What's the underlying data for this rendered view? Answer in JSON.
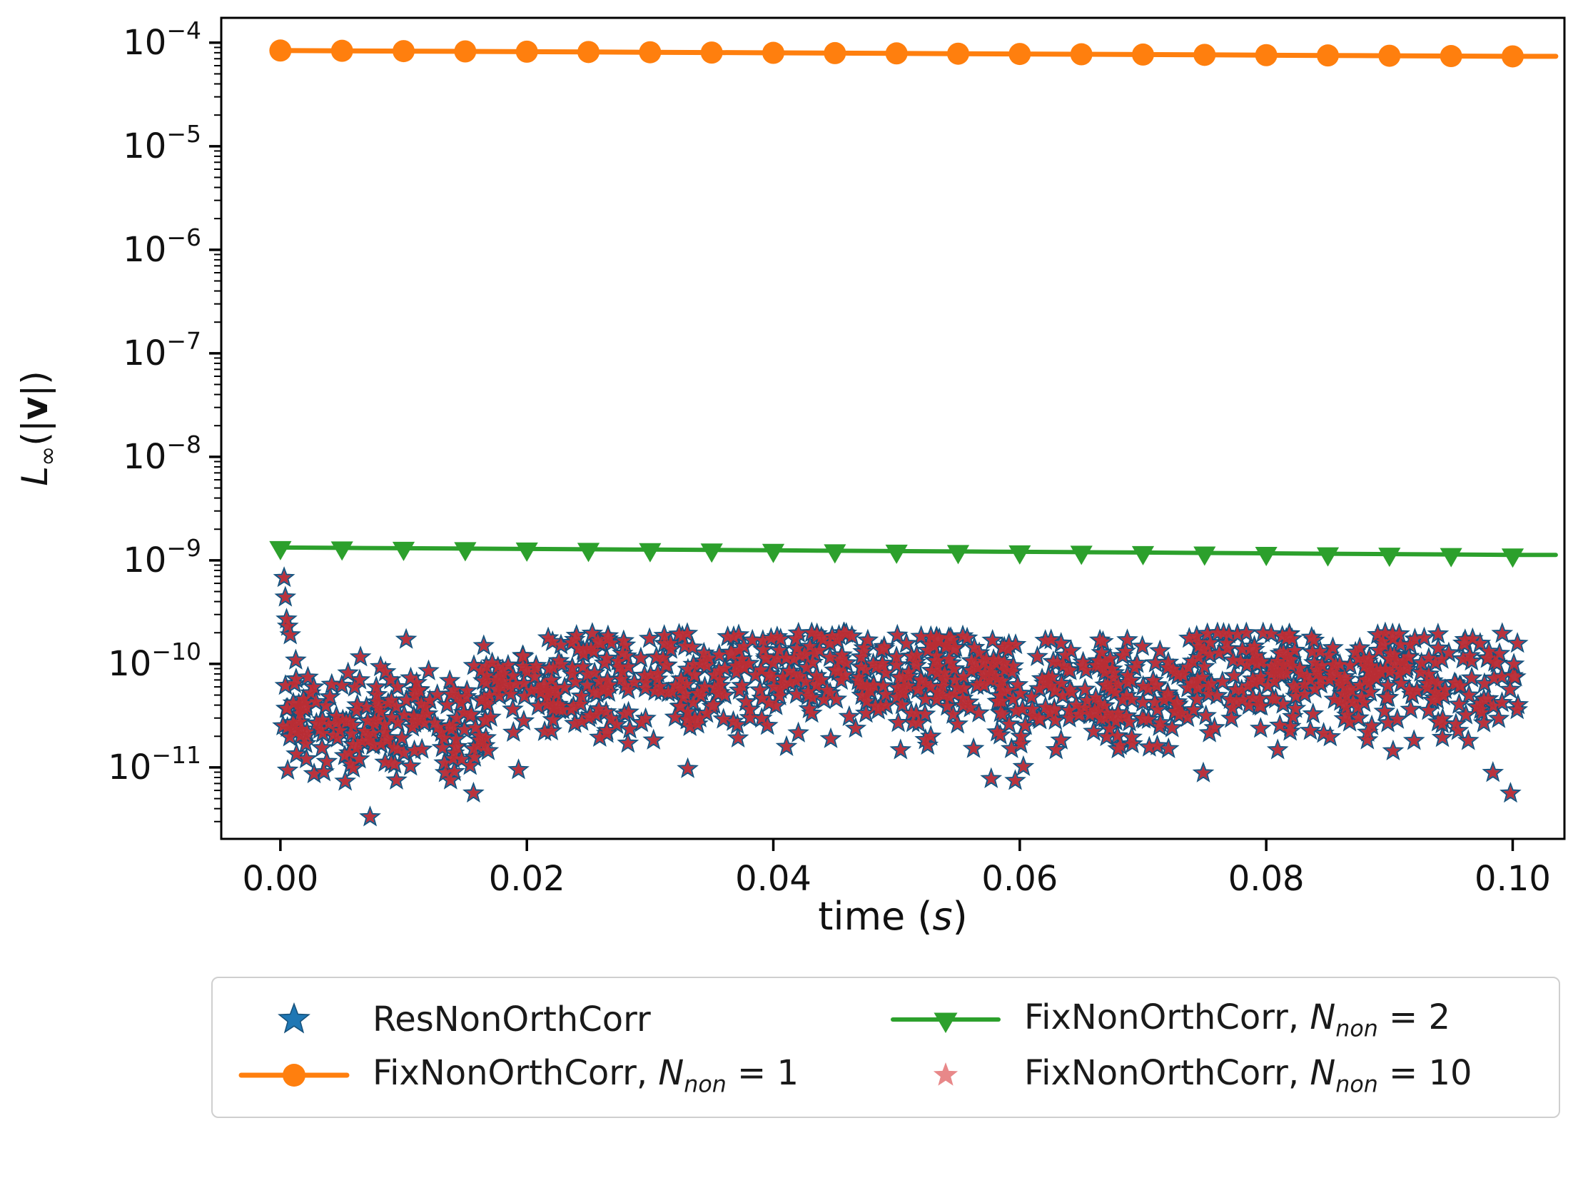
{
  "figure": {
    "background": "#ffffff",
    "text_color": "#111111",
    "frame_color": "#000000"
  },
  "chart_data": {
    "type": "line+scatter",
    "title": "",
    "xlabel_parts": {
      "prefix": "time (",
      "var": "s",
      "suffix": ")"
    },
    "ylabel_parts": {
      "var": "L",
      "sub": "∞",
      "open": "(|",
      "bold": "v",
      "close": "|)"
    },
    "x_axis": {
      "tick_values": [
        0.0,
        0.02,
        0.04,
        0.06,
        0.08,
        0.1
      ],
      "tick_labels": [
        "0.00",
        "0.02",
        "0.04",
        "0.06",
        "0.08",
        "0.10"
      ]
    },
    "y_axis": {
      "scale": "log",
      "tick_base": "10",
      "tick_exponents": [
        -4,
        -5,
        -6,
        -7,
        -8,
        -9,
        -10,
        -11
      ]
    },
    "xlim": [
      -0.0048,
      0.1042
    ],
    "ylog_lim": [
      -3.76,
      -11.69
    ],
    "series": [
      {
        "name": "ResNonOrthCorr",
        "type": "scatter",
        "marker": "star",
        "color": "#1f77b4",
        "edge_color": "#15507a"
      },
      {
        "name": "FixNonOrthCorr, N_non = 1",
        "type": "line",
        "marker": "circle",
        "color": "#ff7f0e",
        "x": [
          0,
          0.005,
          0.01,
          0.015,
          0.02,
          0.025,
          0.03,
          0.035,
          0.04,
          0.045,
          0.05,
          0.055,
          0.06,
          0.065,
          0.07,
          0.075,
          0.08,
          0.085,
          0.09,
          0.095,
          0.1
        ],
        "y": [
          8.4e-05,
          8.35e-05,
          8.29e-05,
          8.24e-05,
          8.19e-05,
          8.13e-05,
          8.08e-05,
          8.03e-05,
          7.98e-05,
          7.93e-05,
          7.88e-05,
          7.83e-05,
          7.78e-05,
          7.73e-05,
          7.68e-05,
          7.63e-05,
          7.58e-05,
          7.53e-05,
          7.48e-05,
          7.43e-05,
          7.38e-05
        ]
      },
      {
        "name": "FixNonOrthCorr, N_non = 2",
        "type": "line",
        "marker": "triangle-down",
        "color": "#2ca02c",
        "x": [
          0,
          0.005,
          0.01,
          0.015,
          0.02,
          0.025,
          0.03,
          0.035,
          0.04,
          0.045,
          0.05,
          0.055,
          0.06,
          0.065,
          0.07,
          0.075,
          0.08,
          0.085,
          0.09,
          0.095,
          0.1
        ],
        "y": [
          1.33e-09,
          1.32e-09,
          1.31e-09,
          1.3e-09,
          1.29e-09,
          1.28e-09,
          1.27e-09,
          1.26e-09,
          1.25e-09,
          1.24e-09,
          1.23e-09,
          1.22e-09,
          1.21e-09,
          1.2e-09,
          1.19e-09,
          1.18e-09,
          1.17e-09,
          1.16e-09,
          1.15e-09,
          1.14e-09,
          1.13e-09
        ]
      },
      {
        "name": "FixNonOrthCorr, N_non = 10",
        "type": "scatter",
        "marker": "star",
        "color": "#d62728",
        "edge_color": "none"
      }
    ],
    "scatter_cloud": {
      "comment": "ResNonOrthCorr and FixNonOrthCorr N_non=10 overlap as one noisy band between ~4e-12 and ~2e-10",
      "seed": 20240613,
      "n_points": 1150,
      "t_range": [
        0.0002,
        0.1005
      ],
      "log10_spread": 0.27,
      "low_outlier_prob": 0.035,
      "low_outlier_extra": 0.7,
      "clamp_log10": [
        -11.5,
        -9.7
      ],
      "envelope": [
        [
          0.0,
          -10.45
        ],
        [
          0.003,
          -10.55
        ],
        [
          0.006,
          -10.62
        ],
        [
          0.01,
          -10.55
        ],
        [
          0.014,
          -10.55
        ],
        [
          0.017,
          -10.35
        ],
        [
          0.02,
          -10.22
        ],
        [
          0.025,
          -10.18
        ],
        [
          0.03,
          -10.1
        ],
        [
          0.035,
          -10.12
        ],
        [
          0.04,
          -10.05
        ],
        [
          0.044,
          -9.98
        ],
        [
          0.048,
          -10.08
        ],
        [
          0.052,
          -10.08
        ],
        [
          0.056,
          -10.12
        ],
        [
          0.06,
          -10.3
        ],
        [
          0.064,
          -10.18
        ],
        [
          0.068,
          -10.32
        ],
        [
          0.072,
          -10.3
        ],
        [
          0.075,
          -10.12
        ],
        [
          0.08,
          -10.1
        ],
        [
          0.085,
          -10.15
        ],
        [
          0.09,
          -10.12
        ],
        [
          0.095,
          -10.18
        ],
        [
          0.1,
          -10.05
        ]
      ],
      "transient_points": [
        {
          "t": 0.0003,
          "y": 6.8e-10
        },
        {
          "t": 0.0004,
          "y": 4.4e-10
        },
        {
          "t": 0.0005,
          "y": 2.7e-10
        },
        {
          "t": 0.0006,
          "y": 2.3e-10
        },
        {
          "t": 0.0008,
          "y": 1.9e-10
        }
      ]
    }
  },
  "legend": {
    "items": [
      {
        "label": "ResNonOrthCorr"
      },
      {
        "prefix": "FixNonOrthCorr, ",
        "var": "N",
        "sub": "non",
        "suffix": " = 1"
      },
      {
        "prefix": "FixNonOrthCorr, ",
        "var": "N",
        "sub": "non",
        "suffix": " = 2"
      },
      {
        "prefix": "FixNonOrthCorr, ",
        "var": "N",
        "sub": "non",
        "suffix": " = 10"
      }
    ]
  }
}
